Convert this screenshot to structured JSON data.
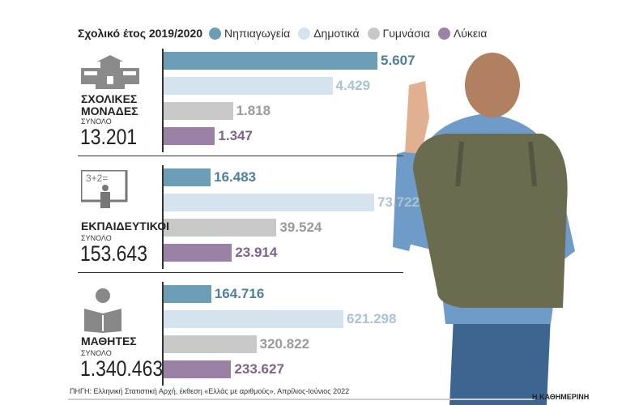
{
  "chart_data": {
    "type": "bar",
    "title": "Σχολικό έτος 2019/2020",
    "legend": [
      "Νηπιαγωγεία",
      "Δημοτικά",
      "Γυμνάσια",
      "Λύκεια"
    ],
    "colors": [
      "#6b9db4",
      "#d4e3ed",
      "#c8c8c8",
      "#9a82a6"
    ],
    "text_colors": [
      "#4f8099",
      "#a9c3d4",
      "#9a9a9a",
      "#7c6489"
    ],
    "groups": [
      {
        "label": "ΣΧΟΛΙΚΕΣ ΜΟΝΑΔΕΣ",
        "total_label": "ΣΥΝΟΛΟ",
        "total": "13.201",
        "values": [
          5607,
          4429,
          1818,
          1347
        ],
        "value_labels": [
          "5.607",
          "4.429",
          "1.818",
          "1.347"
        ]
      },
      {
        "label": "ΕΚΠΑΙΔΕΥΤΙΚΟΙ",
        "total_label": "ΣΥΝΟΛΟ",
        "total": "153.643",
        "values": [
          16483,
          73722,
          39524,
          23914
        ],
        "value_labels": [
          "16.483",
          "73.722",
          "39.524",
          "23.914"
        ]
      },
      {
        "label": "ΜΑΘΗΤΕΣ",
        "total_label": "ΣΥΝΟΛΟ",
        "total": "1.340.463",
        "values": [
          164716,
          621298,
          320822,
          233627
        ],
        "value_labels": [
          "164.716",
          "621.298",
          "320.822",
          "233.627"
        ]
      }
    ]
  },
  "icon_text": "3+2=",
  "source": "ΠΗΓΗ: Ελληνική Στατιστική Αρχή, έκθεση «Ελλάς με αριθμούς», Απρίλιος-Ιούνιος 2022",
  "brand": "Η ΚΑΘΗΜΕΡΙΝΗ"
}
